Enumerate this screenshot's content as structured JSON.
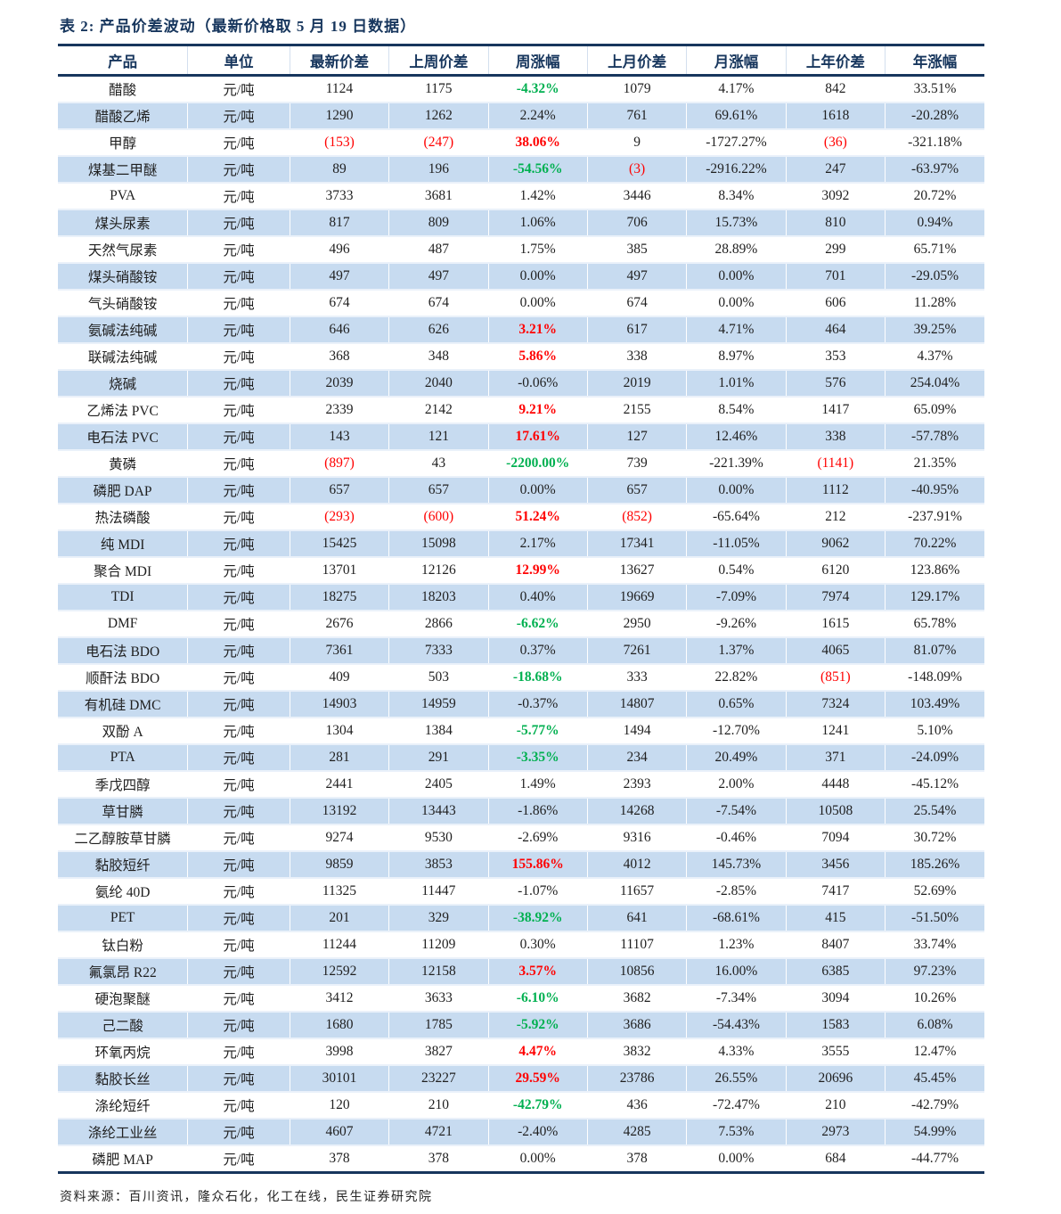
{
  "title": "表 2: 产品价差波动（最新价格取 5 月 19 日数据）",
  "source": "资料来源：百川资讯，隆众石化，化工在线，民生证券研究院",
  "colors": {
    "header_text": "#17365D",
    "stripe_blue": "#C7DBF0",
    "up_red": "#FF0000",
    "down_green": "#00B050"
  },
  "table": {
    "columns": [
      "产品",
      "单位",
      "最新价差",
      "上周价差",
      "周涨幅",
      "上月价差",
      "月涨幅",
      "上年价差",
      "年涨幅"
    ],
    "rows": [
      {
        "product": "醋酸",
        "unit": "元/吨",
        "latest": "1124",
        "last_week": "1175",
        "week_chg": "-4.32%",
        "week_style": "down",
        "last_month": "1079",
        "month_chg": "4.17%",
        "last_year": "842",
        "year_chg": "33.51%"
      },
      {
        "product": "醋酸乙烯",
        "unit": "元/吨",
        "latest": "1290",
        "last_week": "1262",
        "week_chg": "2.24%",
        "week_style": "flat",
        "last_month": "761",
        "month_chg": "69.61%",
        "last_year": "1618",
        "year_chg": "-20.28%"
      },
      {
        "product": "甲醇",
        "unit": "元/吨",
        "latest": "(153)",
        "last_week": "(247)",
        "week_chg": "38.06%",
        "week_style": "up",
        "last_month": "9",
        "month_chg": "-1727.27%",
        "last_year": "(36)",
        "year_chg": "-321.18%"
      },
      {
        "product": "煤基二甲醚",
        "unit": "元/吨",
        "latest": "89",
        "last_week": "196",
        "week_chg": "-54.56%",
        "week_style": "down",
        "last_month": "(3)",
        "month_chg": "-2916.22%",
        "last_year": "247",
        "year_chg": "-63.97%"
      },
      {
        "product": "PVA",
        "unit": "元/吨",
        "latest": "3733",
        "last_week": "3681",
        "week_chg": "1.42%",
        "week_style": "flat",
        "last_month": "3446",
        "month_chg": "8.34%",
        "last_year": "3092",
        "year_chg": "20.72%"
      },
      {
        "product": "煤头尿素",
        "unit": "元/吨",
        "latest": "817",
        "last_week": "809",
        "week_chg": "1.06%",
        "week_style": "flat",
        "last_month": "706",
        "month_chg": "15.73%",
        "last_year": "810",
        "year_chg": "0.94%"
      },
      {
        "product": "天然气尿素",
        "unit": "元/吨",
        "latest": "496",
        "last_week": "487",
        "week_chg": "1.75%",
        "week_style": "flat",
        "last_month": "385",
        "month_chg": "28.89%",
        "last_year": "299",
        "year_chg": "65.71%"
      },
      {
        "product": "煤头硝酸铵",
        "unit": "元/吨",
        "latest": "497",
        "last_week": "497",
        "week_chg": "0.00%",
        "week_style": "flat",
        "last_month": "497",
        "month_chg": "0.00%",
        "last_year": "701",
        "year_chg": "-29.05%"
      },
      {
        "product": "气头硝酸铵",
        "unit": "元/吨",
        "latest": "674",
        "last_week": "674",
        "week_chg": "0.00%",
        "week_style": "flat",
        "last_month": "674",
        "month_chg": "0.00%",
        "last_year": "606",
        "year_chg": "11.28%"
      },
      {
        "product": "氨碱法纯碱",
        "unit": "元/吨",
        "latest": "646",
        "last_week": "626",
        "week_chg": "3.21%",
        "week_style": "up",
        "last_month": "617",
        "month_chg": "4.71%",
        "last_year": "464",
        "year_chg": "39.25%"
      },
      {
        "product": "联碱法纯碱",
        "unit": "元/吨",
        "latest": "368",
        "last_week": "348",
        "week_chg": "5.86%",
        "week_style": "up",
        "last_month": "338",
        "month_chg": "8.97%",
        "last_year": "353",
        "year_chg": "4.37%"
      },
      {
        "product": "烧碱",
        "unit": "元/吨",
        "latest": "2039",
        "last_week": "2040",
        "week_chg": "-0.06%",
        "week_style": "flat",
        "last_month": "2019",
        "month_chg": "1.01%",
        "last_year": "576",
        "year_chg": "254.04%"
      },
      {
        "product": "乙烯法 PVC",
        "unit": "元/吨",
        "latest": "2339",
        "last_week": "2142",
        "week_chg": "9.21%",
        "week_style": "up",
        "last_month": "2155",
        "month_chg": "8.54%",
        "last_year": "1417",
        "year_chg": "65.09%"
      },
      {
        "product": "电石法 PVC",
        "unit": "元/吨",
        "latest": "143",
        "last_week": "121",
        "week_chg": "17.61%",
        "week_style": "up",
        "last_month": "127",
        "month_chg": "12.46%",
        "last_year": "338",
        "year_chg": "-57.78%"
      },
      {
        "product": "黄磷",
        "unit": "元/吨",
        "latest": "(897)",
        "last_week": "43",
        "week_chg": "-2200.00%",
        "week_style": "down",
        "last_month": "739",
        "month_chg": "-221.39%",
        "last_year": "(1141)",
        "year_chg": "21.35%"
      },
      {
        "product": "磷肥 DAP",
        "unit": "元/吨",
        "latest": "657",
        "last_week": "657",
        "week_chg": "0.00%",
        "week_style": "flat",
        "last_month": "657",
        "month_chg": "0.00%",
        "last_year": "1112",
        "year_chg": "-40.95%"
      },
      {
        "product": "热法磷酸",
        "unit": "元/吨",
        "latest": "(293)",
        "last_week": "(600)",
        "week_chg": "51.24%",
        "week_style": "up",
        "last_month": "(852)",
        "month_chg": "-65.64%",
        "last_year": "212",
        "year_chg": "-237.91%"
      },
      {
        "product": "纯 MDI",
        "unit": "元/吨",
        "latest": "15425",
        "last_week": "15098",
        "week_chg": "2.17%",
        "week_style": "flat",
        "last_month": "17341",
        "month_chg": "-11.05%",
        "last_year": "9062",
        "year_chg": "70.22%"
      },
      {
        "product": "聚合 MDI",
        "unit": "元/吨",
        "latest": "13701",
        "last_week": "12126",
        "week_chg": "12.99%",
        "week_style": "up",
        "last_month": "13627",
        "month_chg": "0.54%",
        "last_year": "6120",
        "year_chg": "123.86%"
      },
      {
        "product": "TDI",
        "unit": "元/吨",
        "latest": "18275",
        "last_week": "18203",
        "week_chg": "0.40%",
        "week_style": "flat",
        "last_month": "19669",
        "month_chg": "-7.09%",
        "last_year": "7974",
        "year_chg": "129.17%"
      },
      {
        "product": "DMF",
        "unit": "元/吨",
        "latest": "2676",
        "last_week": "2866",
        "week_chg": "-6.62%",
        "week_style": "down",
        "last_month": "2950",
        "month_chg": "-9.26%",
        "last_year": "1615",
        "year_chg": "65.78%"
      },
      {
        "product": "电石法 BDO",
        "unit": "元/吨",
        "latest": "7361",
        "last_week": "7333",
        "week_chg": "0.37%",
        "week_style": "flat",
        "last_month": "7261",
        "month_chg": "1.37%",
        "last_year": "4065",
        "year_chg": "81.07%"
      },
      {
        "product": "顺酐法 BDO",
        "unit": "元/吨",
        "latest": "409",
        "last_week": "503",
        "week_chg": "-18.68%",
        "week_style": "down",
        "last_month": "333",
        "month_chg": "22.82%",
        "last_year": "(851)",
        "year_chg": "-148.09%"
      },
      {
        "product": "有机硅 DMC",
        "unit": "元/吨",
        "latest": "14903",
        "last_week": "14959",
        "week_chg": "-0.37%",
        "week_style": "flat",
        "last_month": "14807",
        "month_chg": "0.65%",
        "last_year": "7324",
        "year_chg": "103.49%"
      },
      {
        "product": "双酚 A",
        "unit": "元/吨",
        "latest": "1304",
        "last_week": "1384",
        "week_chg": "-5.77%",
        "week_style": "down",
        "last_month": "1494",
        "month_chg": "-12.70%",
        "last_year": "1241",
        "year_chg": "5.10%"
      },
      {
        "product": "PTA",
        "unit": "元/吨",
        "latest": "281",
        "last_week": "291",
        "week_chg": "-3.35%",
        "week_style": "down",
        "last_month": "234",
        "month_chg": "20.49%",
        "last_year": "371",
        "year_chg": "-24.09%"
      },
      {
        "product": "季戊四醇",
        "unit": "元/吨",
        "latest": "2441",
        "last_week": "2405",
        "week_chg": "1.49%",
        "week_style": "flat",
        "last_month": "2393",
        "month_chg": "2.00%",
        "last_year": "4448",
        "year_chg": "-45.12%"
      },
      {
        "product": "草甘膦",
        "unit": "元/吨",
        "latest": "13192",
        "last_week": "13443",
        "week_chg": "-1.86%",
        "week_style": "flat",
        "last_month": "14268",
        "month_chg": "-7.54%",
        "last_year": "10508",
        "year_chg": "25.54%"
      },
      {
        "product": "二乙醇胺草甘膦",
        "unit": "元/吨",
        "latest": "9274",
        "last_week": "9530",
        "week_chg": "-2.69%",
        "week_style": "flat",
        "last_month": "9316",
        "month_chg": "-0.46%",
        "last_year": "7094",
        "year_chg": "30.72%"
      },
      {
        "product": "黏胶短纤",
        "unit": "元/吨",
        "latest": "9859",
        "last_week": "3853",
        "week_chg": "155.86%",
        "week_style": "up",
        "last_month": "4012",
        "month_chg": "145.73%",
        "last_year": "3456",
        "year_chg": "185.26%"
      },
      {
        "product": "氨纶 40D",
        "unit": "元/吨",
        "latest": "11325",
        "last_week": "11447",
        "week_chg": "-1.07%",
        "week_style": "flat",
        "last_month": "11657",
        "month_chg": "-2.85%",
        "last_year": "7417",
        "year_chg": "52.69%"
      },
      {
        "product": "PET",
        "unit": "元/吨",
        "latest": "201",
        "last_week": "329",
        "week_chg": "-38.92%",
        "week_style": "down",
        "last_month": "641",
        "month_chg": "-68.61%",
        "last_year": "415",
        "year_chg": "-51.50%"
      },
      {
        "product": "钛白粉",
        "unit": "元/吨",
        "latest": "11244",
        "last_week": "11209",
        "week_chg": "0.30%",
        "week_style": "flat",
        "last_month": "11107",
        "month_chg": "1.23%",
        "last_year": "8407",
        "year_chg": "33.74%"
      },
      {
        "product": "氟氯昂 R22",
        "unit": "元/吨",
        "latest": "12592",
        "last_week": "12158",
        "week_chg": "3.57%",
        "week_style": "up",
        "last_month": "10856",
        "month_chg": "16.00%",
        "last_year": "6385",
        "year_chg": "97.23%"
      },
      {
        "product": "硬泡聚醚",
        "unit": "元/吨",
        "latest": "3412",
        "last_week": "3633",
        "week_chg": "-6.10%",
        "week_style": "down",
        "last_month": "3682",
        "month_chg": "-7.34%",
        "last_year": "3094",
        "year_chg": "10.26%"
      },
      {
        "product": "己二酸",
        "unit": "元/吨",
        "latest": "1680",
        "last_week": "1785",
        "week_chg": "-5.92%",
        "week_style": "down",
        "last_month": "3686",
        "month_chg": "-54.43%",
        "last_year": "1583",
        "year_chg": "6.08%"
      },
      {
        "product": "环氧丙烷",
        "unit": "元/吨",
        "latest": "3998",
        "last_week": "3827",
        "week_chg": "4.47%",
        "week_style": "up",
        "last_month": "3832",
        "month_chg": "4.33%",
        "last_year": "3555",
        "year_chg": "12.47%"
      },
      {
        "product": "黏胶长丝",
        "unit": "元/吨",
        "latest": "30101",
        "last_week": "23227",
        "week_chg": "29.59%",
        "week_style": "up",
        "last_month": "23786",
        "month_chg": "26.55%",
        "last_year": "20696",
        "year_chg": "45.45%"
      },
      {
        "product": "涤纶短纤",
        "unit": "元/吨",
        "latest": "120",
        "last_week": "210",
        "week_chg": "-42.79%",
        "week_style": "down",
        "last_month": "436",
        "month_chg": "-72.47%",
        "last_year": "210",
        "year_chg": "-42.79%"
      },
      {
        "product": "涤纶工业丝",
        "unit": "元/吨",
        "latest": "4607",
        "last_week": "4721",
        "week_chg": "-2.40%",
        "week_style": "flat",
        "last_month": "4285",
        "month_chg": "7.53%",
        "last_year": "2973",
        "year_chg": "54.99%"
      },
      {
        "product": "磷肥 MAP",
        "unit": "元/吨",
        "latest": "378",
        "last_week": "378",
        "week_chg": "0.00%",
        "week_style": "flat",
        "last_month": "378",
        "month_chg": "0.00%",
        "last_year": "684",
        "year_chg": "-44.77%"
      }
    ]
  }
}
